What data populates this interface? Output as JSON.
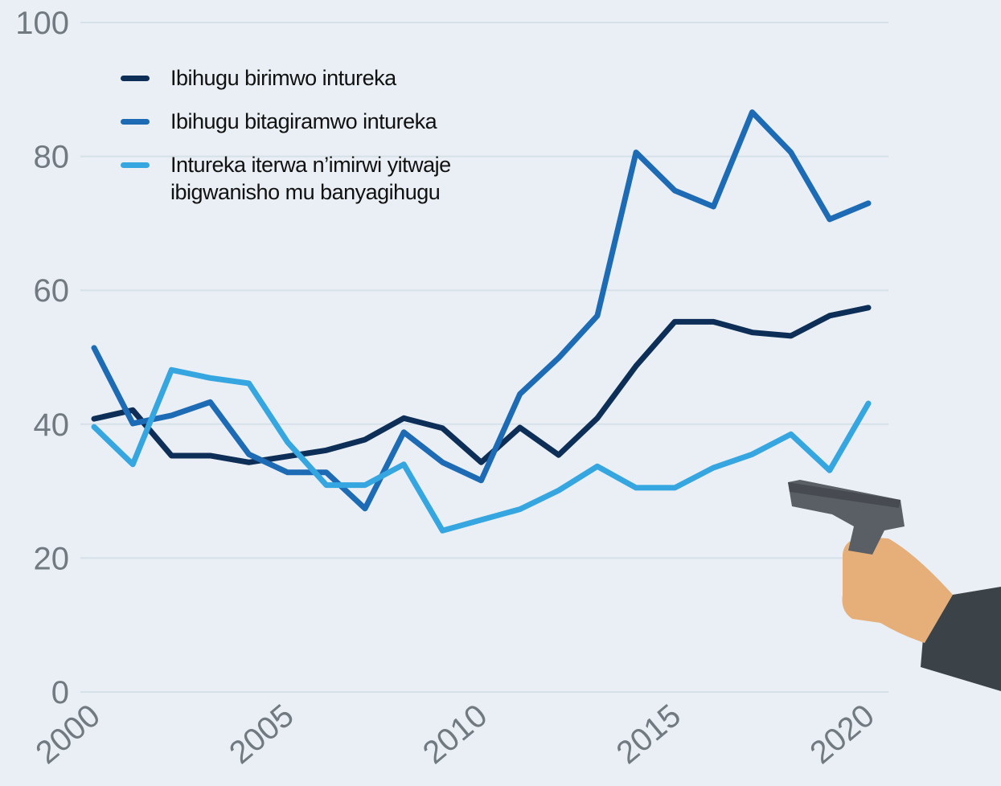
{
  "chart_data": {
    "type": "line",
    "x": [
      2000,
      2001,
      2002,
      2003,
      2004,
      2005,
      2006,
      2007,
      2008,
      2009,
      2010,
      2011,
      2012,
      2013,
      2014,
      2015,
      2016,
      2017,
      2018,
      2019,
      2020
    ],
    "series": [
      {
        "name": "Ibihugu birimwo intureka",
        "color": "#0d2f57",
        "values": [
          40.8,
          42.1,
          35.3,
          35.3,
          34.3,
          35.2,
          36.1,
          37.7,
          40.9,
          39.4,
          34.3,
          39.5,
          35.4,
          40.9,
          48.7,
          55.3,
          55.3,
          53.7,
          53.2,
          56.2,
          57.4
        ]
      },
      {
        "name": "Ibihugu bitagiramwo intureka",
        "color": "#1d6bb5",
        "values": [
          51.4,
          40.1,
          41.3,
          43.3,
          35.5,
          32.8,
          32.8,
          27.4,
          38.8,
          34.3,
          31.6,
          44.5,
          49.9,
          56.2,
          80.6,
          74.9,
          72.5,
          86.6,
          80.6,
          70.6,
          73.0
        ]
      },
      {
        "name": "Intureka iterwa n’imirwi yitwaje ibigwanisho mu banyagihugu",
        "color": "#36a6e0",
        "values": [
          39.6,
          34.0,
          48.1,
          46.9,
          46.1,
          37.3,
          30.9,
          30.9,
          34.0,
          24.1,
          25.7,
          27.3,
          30.1,
          33.7,
          30.5,
          30.5,
          33.5,
          35.5,
          38.5,
          33.1,
          43.1
        ]
      }
    ],
    "xlim": [
      2000,
      2020
    ],
    "xticks": [
      2000,
      2005,
      2010,
      2015,
      2020
    ],
    "ylim": [
      0,
      100
    ],
    "yticks": [
      0,
      20,
      40,
      60,
      80,
      100
    ],
    "grid": true
  }
}
